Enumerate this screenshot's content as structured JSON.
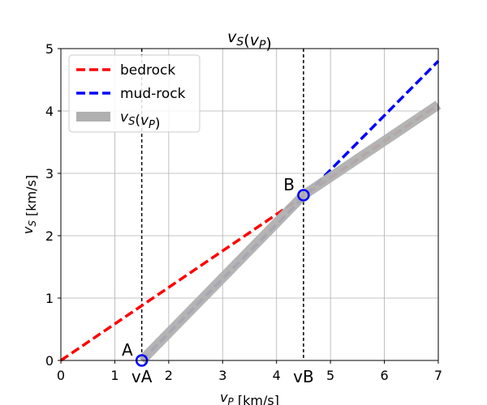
{
  "chart_data": {
    "type": "line",
    "title": "v_S(v_P)",
    "title_display": {
      "base": "v",
      "sub": "S",
      "open": "(",
      "arg_base": "v",
      "arg_sub": "P",
      "close": ")"
    },
    "xlabel": "v_P [km/s]",
    "xlabel_display": {
      "base": "v",
      "sub": "P",
      "rest": " [km/s]"
    },
    "ylabel": "v_S [km/s]",
    "ylabel_display": {
      "base": "v",
      "sub": "S",
      "rest": " [km/s]"
    },
    "xlim": [
      0,
      7
    ],
    "ylim": [
      0,
      5
    ],
    "xticks": [
      0,
      1,
      2,
      3,
      4,
      5,
      6,
      7
    ],
    "yticks": [
      0,
      1,
      2,
      3,
      4,
      5
    ],
    "grid": true,
    "legend_placement": "top-left",
    "series": [
      {
        "name": "bedrock",
        "style": "dashed",
        "color": "#ff0000",
        "x": [
          0,
          7
        ],
        "y": [
          0,
          4.1
        ]
      },
      {
        "name": "mud-rock",
        "style": "dashed",
        "color": "#0000ff",
        "x": [
          1.5,
          7
        ],
        "y": [
          0,
          4.8
        ]
      },
      {
        "name": "v_S(v_P)",
        "name_display": {
          "base": "v",
          "sub": "S",
          "open": "(",
          "arg_base": "v",
          "arg_sub": "P",
          "close": ")"
        },
        "style": "thick",
        "color": "#b0b0b0",
        "x": [
          1.5,
          4.5,
          7
        ],
        "y": [
          0,
          2.65,
          4.1
        ]
      }
    ],
    "points": [
      {
        "label": "A",
        "x": 1.5,
        "y": 0,
        "color": "#0000ff"
      },
      {
        "label": "B",
        "x": 4.5,
        "y": 2.65,
        "color": "#0000ff"
      }
    ],
    "vlines": [
      {
        "x": 1.5,
        "label": "vA",
        "style": "dashed",
        "color": "#000000"
      },
      {
        "x": 4.5,
        "label": "vB",
        "style": "dashed",
        "color": "#000000"
      }
    ]
  }
}
